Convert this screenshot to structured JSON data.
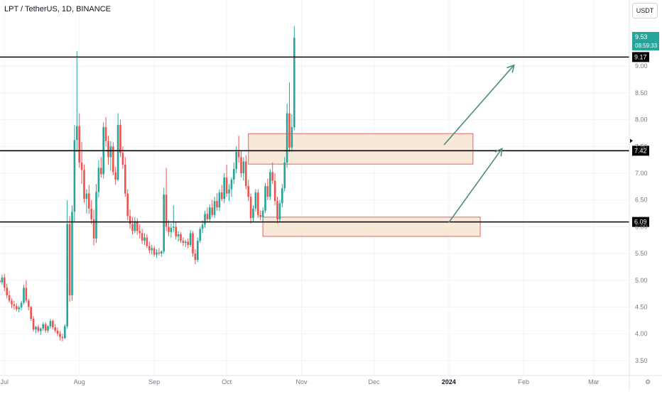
{
  "header": {
    "symbol_title": "LPT / TetherUS, 1D, BINANCE",
    "currency_label": "USDT"
  },
  "price_badges": {
    "last_price": "9.53",
    "countdown": "08:59:33"
  },
  "colors": {
    "up": "#26a69a",
    "down": "#ef5350",
    "zone_fill": "#f7e4d0",
    "zone_border": "#e06666",
    "arrow": "#4e8c7e",
    "level_line": "#000000",
    "grid": "#f0f3fa",
    "axis_text": "#787b86"
  },
  "chart_data": {
    "type": "candlestick",
    "y_axis": {
      "ticks": [
        "9.00",
        "8.50",
        "8.00",
        "7.50",
        "7.00",
        "6.50",
        "6.00",
        "5.50",
        "5.00",
        "4.50",
        "4.00",
        "3.50"
      ],
      "ylim": [
        3.2,
        9.75
      ]
    },
    "x_axis": {
      "ticks": [
        "Jul",
        "Aug",
        "Sep",
        "Oct",
        "Nov",
        "Dec",
        "2024",
        "Feb",
        "Mar"
      ]
    },
    "levels": [
      {
        "value": 9.17,
        "label": "9.17"
      },
      {
        "value": 7.42,
        "label": "7.42"
      },
      {
        "value": 6.09,
        "label": "6.09"
      }
    ],
    "zones": [
      {
        "from_date": "2023-10-10",
        "to_date": "2024-01-11",
        "low": 7.17,
        "high": 7.74
      },
      {
        "from_date": "2023-10-16",
        "to_date": "2024-01-14",
        "low": 5.82,
        "high": 6.18
      }
    ],
    "arrows": [
      {
        "from_date": "2023-12-30",
        "from_price": 7.53,
        "to_date": "2024-01-28",
        "to_price": 9.02
      },
      {
        "from_date": "2024-01-01",
        "from_price": 6.08,
        "to_date": "2024-01-23",
        "to_price": 7.46
      }
    ],
    "first_date": "2023-06-29",
    "candles": [
      [
        5.0,
        5.06,
        4.91,
        4.96
      ],
      [
        4.96,
        5.1,
        4.92,
        5.05
      ],
      [
        5.05,
        5.12,
        4.8,
        4.86
      ],
      [
        4.86,
        4.94,
        4.66,
        4.72
      ],
      [
        4.72,
        4.8,
        4.58,
        4.62
      ],
      [
        4.62,
        4.66,
        4.48,
        4.55
      ],
      [
        4.55,
        4.62,
        4.45,
        4.52
      ],
      [
        4.52,
        4.57,
        4.42,
        4.46
      ],
      [
        4.46,
        4.53,
        4.4,
        4.49
      ],
      [
        4.49,
        4.62,
        4.44,
        4.58
      ],
      [
        4.58,
        4.92,
        4.55,
        4.86
      ],
      [
        4.86,
        5.0,
        4.58,
        4.62
      ],
      [
        4.62,
        4.66,
        4.44,
        4.5
      ],
      [
        4.5,
        4.52,
        4.24,
        4.28
      ],
      [
        4.28,
        4.33,
        4.04,
        4.08
      ],
      [
        4.08,
        4.15,
        4.01,
        4.13
      ],
      [
        4.13,
        4.17,
        4.02,
        4.05
      ],
      [
        4.05,
        4.12,
        3.98,
        4.1
      ],
      [
        4.1,
        4.22,
        4.06,
        4.18
      ],
      [
        4.18,
        4.22,
        4.02,
        4.06
      ],
      [
        4.06,
        4.16,
        4.02,
        4.14
      ],
      [
        4.14,
        4.28,
        4.1,
        4.24
      ],
      [
        4.24,
        4.27,
        4.08,
        4.12
      ],
      [
        4.12,
        4.18,
        4.02,
        4.06
      ],
      [
        4.06,
        4.12,
        3.96,
        4.0
      ],
      [
        4.0,
        4.05,
        3.88,
        3.94
      ],
      [
        3.94,
        4.0,
        3.86,
        3.92
      ],
      [
        3.92,
        4.18,
        3.9,
        4.14
      ],
      [
        4.14,
        6.5,
        4.1,
        6.05
      ],
      [
        6.05,
        6.2,
        4.6,
        4.72
      ],
      [
        4.72,
        6.4,
        4.62,
        6.28
      ],
      [
        6.28,
        7.9,
        6.1,
        7.62
      ],
      [
        7.62,
        9.28,
        7.4,
        7.88
      ],
      [
        7.88,
        8.12,
        7.1,
        7.2
      ],
      [
        7.2,
        7.58,
        6.8,
        7.06
      ],
      [
        7.06,
        7.16,
        6.45,
        6.52
      ],
      [
        6.52,
        6.7,
        6.25,
        6.62
      ],
      [
        6.62,
        6.78,
        6.24,
        6.34
      ],
      [
        6.34,
        6.5,
        6.05,
        6.14
      ],
      [
        6.14,
        6.32,
        5.65,
        5.78
      ],
      [
        5.78,
        6.8,
        5.7,
        6.65
      ],
      [
        6.65,
        7.24,
        6.55,
        7.1
      ],
      [
        7.1,
        7.3,
        6.92,
        6.98
      ],
      [
        6.98,
        7.95,
        6.9,
        7.86
      ],
      [
        7.86,
        8.05,
        7.5,
        7.6
      ],
      [
        7.6,
        7.7,
        7.16,
        7.3
      ],
      [
        7.3,
        7.6,
        7.05,
        7.5
      ],
      [
        7.5,
        7.58,
        6.96,
        7.02
      ],
      [
        7.02,
        7.12,
        6.78,
        6.88
      ],
      [
        6.88,
        8.12,
        6.85,
        7.9
      ],
      [
        7.9,
        8.0,
        7.3,
        7.38
      ],
      [
        7.38,
        7.5,
        7.08,
        7.16
      ],
      [
        7.16,
        7.3,
        6.56,
        6.62
      ],
      [
        6.62,
        6.7,
        6.12,
        6.2
      ],
      [
        6.2,
        6.32,
        5.96,
        6.05
      ],
      [
        6.05,
        6.18,
        5.86,
        5.92
      ],
      [
        5.92,
        6.18,
        5.88,
        6.1
      ],
      [
        6.1,
        6.16,
        5.85,
        5.92
      ],
      [
        5.92,
        6.05,
        5.78,
        5.88
      ],
      [
        5.88,
        5.96,
        5.68,
        5.74
      ],
      [
        5.74,
        5.88,
        5.66,
        5.8
      ],
      [
        5.8,
        5.86,
        5.6,
        5.64
      ],
      [
        5.64,
        5.72,
        5.5,
        5.56
      ],
      [
        5.56,
        5.66,
        5.48,
        5.6
      ],
      [
        5.6,
        5.64,
        5.44,
        5.48
      ],
      [
        5.48,
        5.58,
        5.42,
        5.52
      ],
      [
        5.52,
        5.6,
        5.46,
        5.5
      ],
      [
        5.5,
        5.56,
        5.44,
        5.54
      ],
      [
        5.54,
        6.72,
        5.5,
        6.6
      ],
      [
        6.6,
        7.1,
        5.92,
        6.0
      ],
      [
        6.0,
        6.12,
        5.82,
        5.9
      ],
      [
        5.9,
        6.06,
        5.8,
        5.98
      ],
      [
        5.98,
        6.4,
        5.9,
        6.0
      ],
      [
        6.0,
        6.08,
        5.76,
        5.82
      ],
      [
        5.82,
        5.92,
        5.72,
        5.86
      ],
      [
        5.86,
        5.9,
        5.7,
        5.74
      ],
      [
        5.74,
        5.8,
        5.64,
        5.7
      ],
      [
        5.7,
        5.76,
        5.62,
        5.72
      ],
      [
        5.72,
        5.78,
        5.6,
        5.66
      ],
      [
        5.66,
        5.94,
        5.62,
        5.88
      ],
      [
        5.88,
        5.92,
        5.44,
        5.5
      ],
      [
        5.5,
        5.58,
        5.3,
        5.38
      ],
      [
        5.38,
        5.8,
        5.34,
        5.74
      ],
      [
        5.74,
        6.0,
        5.7,
        5.96
      ],
      [
        5.96,
        6.12,
        5.88,
        6.04
      ],
      [
        6.04,
        6.3,
        5.98,
        6.24
      ],
      [
        6.24,
        6.36,
        6.08,
        6.14
      ],
      [
        6.14,
        6.42,
        6.08,
        6.36
      ],
      [
        6.36,
        6.5,
        6.18,
        6.22
      ],
      [
        6.22,
        6.56,
        6.16,
        6.48
      ],
      [
        6.48,
        6.62,
        6.3,
        6.36
      ],
      [
        6.36,
        6.7,
        6.3,
        6.64
      ],
      [
        6.64,
        6.78,
        6.48,
        6.52
      ],
      [
        6.52,
        7.0,
        6.44,
        6.92
      ],
      [
        6.92,
        7.16,
        6.56,
        6.62
      ],
      [
        6.62,
        6.8,
        6.48,
        6.7
      ],
      [
        6.7,
        6.92,
        6.56,
        6.88
      ],
      [
        6.88,
        7.2,
        6.8,
        7.08
      ],
      [
        7.08,
        7.5,
        7.0,
        7.4
      ],
      [
        7.4,
        7.7,
        7.2,
        7.3
      ],
      [
        7.3,
        7.42,
        6.92,
        7.0
      ],
      [
        7.0,
        7.3,
        6.86,
        7.22
      ],
      [
        7.22,
        7.34,
        6.7,
        6.76
      ],
      [
        6.76,
        6.88,
        6.48,
        6.56
      ],
      [
        6.56,
        6.62,
        6.06,
        6.16
      ],
      [
        6.16,
        6.4,
        6.1,
        6.34
      ],
      [
        6.34,
        6.7,
        6.28,
        6.64
      ],
      [
        6.64,
        6.7,
        6.16,
        6.22
      ],
      [
        6.22,
        6.3,
        6.12,
        6.18
      ],
      [
        6.18,
        6.36,
        6.1,
        6.3
      ],
      [
        6.3,
        6.82,
        6.26,
        6.76
      ],
      [
        6.76,
        6.9,
        6.5,
        6.56
      ],
      [
        6.56,
        7.08,
        6.5,
        7.02
      ],
      [
        7.02,
        7.2,
        6.8,
        6.86
      ],
      [
        6.86,
        7.0,
        6.4,
        6.48
      ],
      [
        6.48,
        6.56,
        6.06,
        6.14
      ],
      [
        6.14,
        6.5,
        6.08,
        6.44
      ],
      [
        6.44,
        6.8,
        6.36,
        6.72
      ],
      [
        6.72,
        7.3,
        6.66,
        7.2
      ],
      [
        7.2,
        8.3,
        7.1,
        8.12
      ],
      [
        8.12,
        8.7,
        7.4,
        7.48
      ],
      [
        7.48,
        8.1,
        7.4,
        7.86
      ],
      [
        7.86,
        9.75,
        7.8,
        9.53
      ]
    ]
  }
}
